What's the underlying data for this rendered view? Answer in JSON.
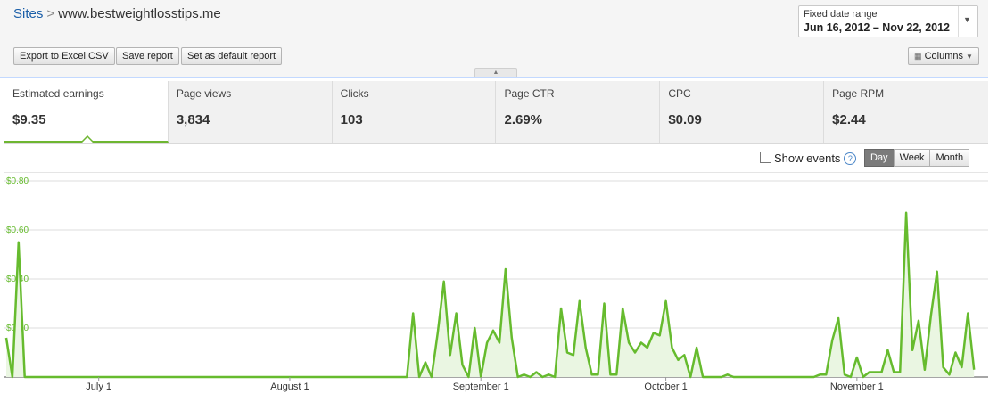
{
  "breadcrumb": {
    "root": "Sites",
    "separator": ">",
    "site": "www.bestweightlosstips.me"
  },
  "toolbar": {
    "export_label": "Export to Excel CSV",
    "save_label": "Save report",
    "default_label": "Set as default report",
    "columns_label": "Columns"
  },
  "date_range": {
    "label": "Fixed date range",
    "value": "Jun 16, 2012 – Nov 22, 2012"
  },
  "metrics": [
    {
      "label": "Estimated earnings",
      "value": "$9.35",
      "active": true
    },
    {
      "label": "Page views",
      "value": "3,834",
      "active": false
    },
    {
      "label": "Clicks",
      "value": "103",
      "active": false
    },
    {
      "label": "Page CTR",
      "value": "2.69%",
      "active": false
    },
    {
      "label": "CPC",
      "value": "$0.09",
      "active": false
    },
    {
      "label": "Page RPM",
      "value": "$2.44",
      "active": false
    }
  ],
  "events": {
    "label": "Show events",
    "checked": false,
    "help": "?"
  },
  "granularity": {
    "options": [
      "Day",
      "Week",
      "Month"
    ],
    "selected": "Day"
  },
  "colors": {
    "accent": "#66bb2e",
    "fill": "#eaf6e2",
    "grid": "#dddddd",
    "link": "#1a5ea8"
  },
  "chart_data": {
    "type": "area",
    "x_start": "2012-06-16",
    "x_end": "2012-11-22",
    "xlabels": [
      {
        "label": "July 1",
        "date": "2012-07-01"
      },
      {
        "label": "August 1",
        "date": "2012-08-01"
      },
      {
        "label": "September 1",
        "date": "2012-09-01"
      },
      {
        "label": "October 1",
        "date": "2012-10-01"
      },
      {
        "label": "November 1",
        "date": "2012-11-01"
      }
    ],
    "yticks": [
      "$0.80",
      "$0.60",
      "$0.40",
      "$0.20"
    ],
    "ylim": [
      0,
      0.8
    ],
    "grid": true,
    "series": [
      {
        "points": [
          [
            "2012-06-16",
            0.16
          ],
          [
            "2012-06-17",
            0.0
          ],
          [
            "2012-06-18",
            0.55
          ],
          [
            "2012-06-19",
            0.0
          ],
          [
            "2012-08-20",
            0.0
          ],
          [
            "2012-08-21",
            0.26
          ],
          [
            "2012-08-22",
            0.0
          ],
          [
            "2012-08-23",
            0.06
          ],
          [
            "2012-08-24",
            0.0
          ],
          [
            "2012-08-25",
            0.18
          ],
          [
            "2012-08-26",
            0.39
          ],
          [
            "2012-08-27",
            0.09
          ],
          [
            "2012-08-28",
            0.26
          ],
          [
            "2012-08-29",
            0.05
          ],
          [
            "2012-08-30",
            0.0
          ],
          [
            "2012-08-31",
            0.2
          ],
          [
            "2012-09-01",
            0.0
          ],
          [
            "2012-09-02",
            0.14
          ],
          [
            "2012-09-03",
            0.19
          ],
          [
            "2012-09-04",
            0.14
          ],
          [
            "2012-09-05",
            0.44
          ],
          [
            "2012-09-06",
            0.16
          ],
          [
            "2012-09-07",
            0.0
          ],
          [
            "2012-09-08",
            0.01
          ],
          [
            "2012-09-09",
            0.0
          ],
          [
            "2012-09-10",
            0.02
          ],
          [
            "2012-09-11",
            0.0
          ],
          [
            "2012-09-12",
            0.01
          ],
          [
            "2012-09-13",
            0.0
          ],
          [
            "2012-09-14",
            0.28
          ],
          [
            "2012-09-15",
            0.1
          ],
          [
            "2012-09-16",
            0.09
          ],
          [
            "2012-09-17",
            0.31
          ],
          [
            "2012-09-18",
            0.12
          ],
          [
            "2012-09-19",
            0.01
          ],
          [
            "2012-09-20",
            0.01
          ],
          [
            "2012-09-21",
            0.3
          ],
          [
            "2012-09-22",
            0.01
          ],
          [
            "2012-09-23",
            0.01
          ],
          [
            "2012-09-24",
            0.28
          ],
          [
            "2012-09-25",
            0.14
          ],
          [
            "2012-09-26",
            0.1
          ],
          [
            "2012-09-27",
            0.14
          ],
          [
            "2012-09-28",
            0.12
          ],
          [
            "2012-09-29",
            0.18
          ],
          [
            "2012-09-30",
            0.17
          ],
          [
            "2012-10-01",
            0.31
          ],
          [
            "2012-10-02",
            0.12
          ],
          [
            "2012-10-03",
            0.07
          ],
          [
            "2012-10-04",
            0.09
          ],
          [
            "2012-10-05",
            0.0
          ],
          [
            "2012-10-06",
            0.12
          ],
          [
            "2012-10-07",
            0.0
          ],
          [
            "2012-10-10",
            0.0
          ],
          [
            "2012-10-11",
            0.01
          ],
          [
            "2012-10-12",
            0.0
          ],
          [
            "2012-10-25",
            0.0
          ],
          [
            "2012-10-26",
            0.01
          ],
          [
            "2012-10-27",
            0.01
          ],
          [
            "2012-10-28",
            0.15
          ],
          [
            "2012-10-29",
            0.24
          ],
          [
            "2012-10-30",
            0.01
          ],
          [
            "2012-10-31",
            0.0
          ],
          [
            "2012-11-01",
            0.08
          ],
          [
            "2012-11-02",
            0.0
          ],
          [
            "2012-11-03",
            0.02
          ],
          [
            "2012-11-04",
            0.02
          ],
          [
            "2012-11-05",
            0.02
          ],
          [
            "2012-11-06",
            0.11
          ],
          [
            "2012-11-07",
            0.02
          ],
          [
            "2012-11-08",
            0.02
          ],
          [
            "2012-11-09",
            0.67
          ],
          [
            "2012-11-10",
            0.11
          ],
          [
            "2012-11-11",
            0.23
          ],
          [
            "2012-11-12",
            0.03
          ],
          [
            "2012-11-13",
            0.25
          ],
          [
            "2012-11-14",
            0.43
          ],
          [
            "2012-11-15",
            0.04
          ],
          [
            "2012-11-16",
            0.01
          ],
          [
            "2012-11-17",
            0.1
          ],
          [
            "2012-11-18",
            0.04
          ],
          [
            "2012-11-19",
            0.26
          ],
          [
            "2012-11-20",
            0.03
          ]
        ]
      }
    ]
  }
}
